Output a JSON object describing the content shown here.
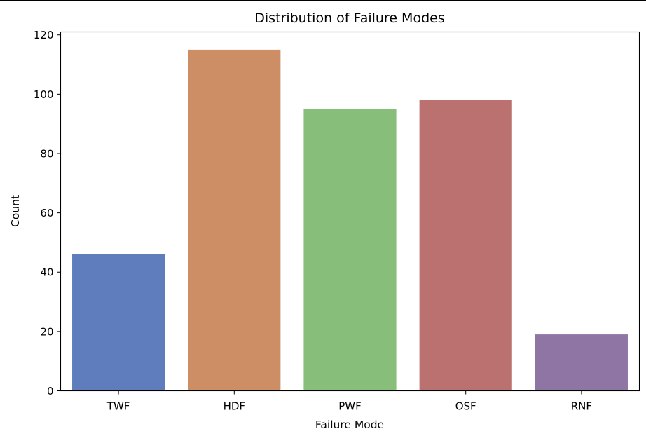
{
  "chart_data": {
    "type": "bar",
    "title": "Distribution of Failure Modes",
    "xlabel": "Failure Mode",
    "ylabel": "Count",
    "categories": [
      "TWF",
      "HDF",
      "PWF",
      "OSF",
      "RNF"
    ],
    "values": [
      46,
      115,
      95,
      98,
      19
    ],
    "ylim": [
      0,
      121
    ],
    "yticks": [
      0,
      20,
      40,
      60,
      80,
      100,
      120
    ],
    "colors": [
      "#5f7cbd",
      "#cd8e65",
      "#86be7a",
      "#bb716f",
      "#8f75a4"
    ],
    "grid": false,
    "legend": "none"
  }
}
